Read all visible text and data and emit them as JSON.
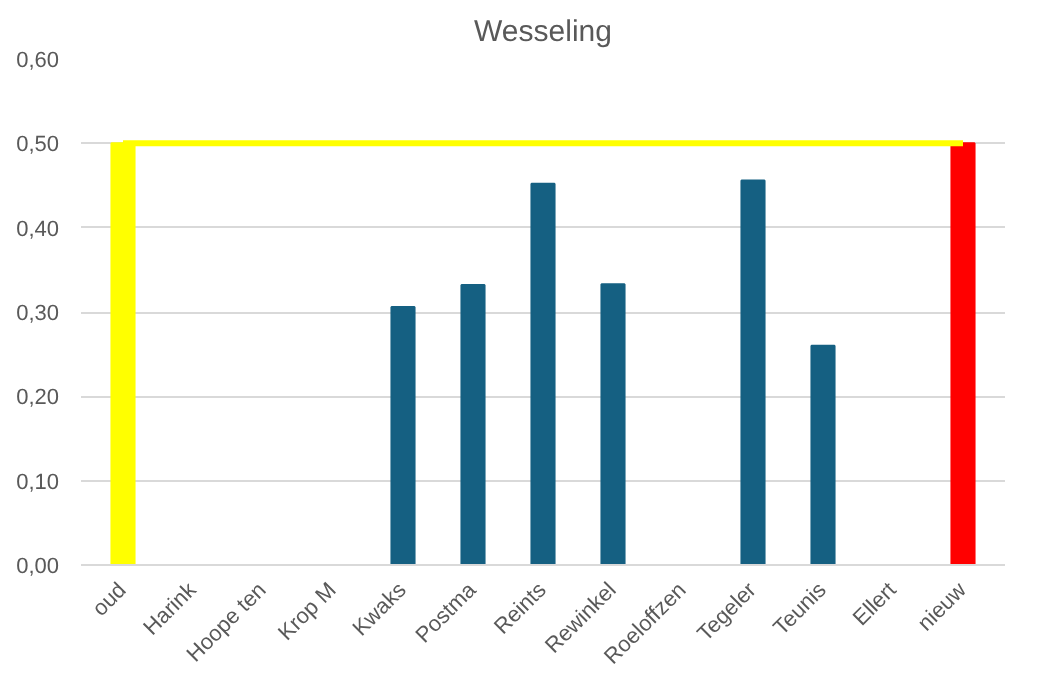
{
  "chart_data": {
    "type": "bar",
    "title": "Wesseling",
    "categories": [
      "oud",
      "Harink",
      "Hoope ten",
      "Krop M",
      "Kwaks",
      "Postma",
      "Reints",
      "Rewinkel",
      "Roeloffzen",
      "Tegeler",
      "Teunis",
      "Ellert",
      "nieuw"
    ],
    "values": [
      0.5,
      null,
      null,
      null,
      0.306,
      0.332,
      0.452,
      0.333,
      null,
      0.456,
      0.26,
      null,
      0.5
    ],
    "colors": [
      "#ffff00",
      "#156082",
      "#156082",
      "#156082",
      "#156082",
      "#156082",
      "#156082",
      "#156082",
      "#156082",
      "#156082",
      "#156082",
      "#156082",
      "#ff0000"
    ],
    "ylim": [
      0,
      0.6
    ],
    "yticks": [
      {
        "value": 0,
        "label": "0,00"
      },
      {
        "value": 0.1,
        "label": "0,10"
      },
      {
        "value": 0.2,
        "label": "0,20"
      },
      {
        "value": 0.3,
        "label": "0,30"
      },
      {
        "value": 0.4,
        "label": "0,40"
      },
      {
        "value": 0.5,
        "label": "0,50"
      },
      {
        "value": 0.6,
        "label": "0,60"
      }
    ],
    "ref_lines": [
      {
        "axis": "y",
        "value": 0.5,
        "label": null,
        "color": "#ffff00"
      }
    ],
    "grid": "y"
  }
}
